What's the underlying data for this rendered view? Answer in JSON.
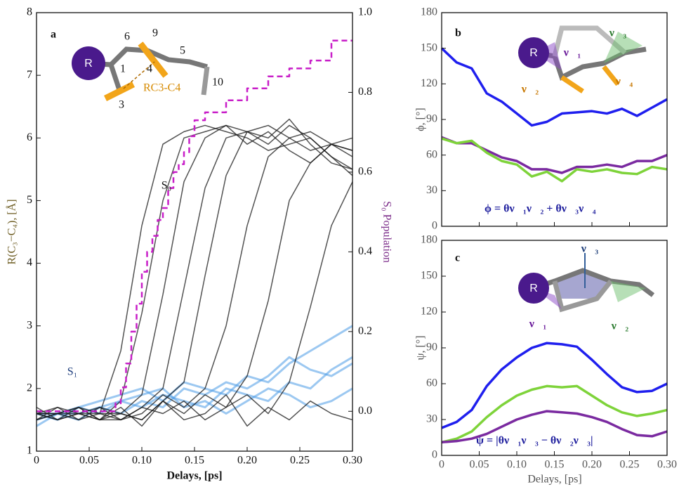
{
  "chart_data": [
    {
      "type": "line",
      "x_label": "Delays, [ps]",
      "y_label": "R(C₃−C₄), [Å]",
      "y2_label": "S₀ Population",
      "annotations": [
        "a",
        "S₀",
        "S₁",
        "R",
        "6",
        "9",
        "5",
        "1",
        "4",
        "10",
        "3",
        "RC3-C4"
      ],
      "xlim": [
        0,
        0.3
      ],
      "xticks": [
        0,
        0.05,
        {
          "value": 0.1,
          "label": "0.10"
        },
        0.15,
        {
          "value": 0.2,
          "label": "0.20"
        },
        0.25,
        {
          "value": 0.3,
          "label": "0.30"
        }
      ],
      "ylim": [
        1,
        8
      ],
      "yticks": [
        1,
        2,
        3,
        4,
        5,
        6,
        7,
        8
      ],
      "y2lim": [
        -0.1,
        1.0
      ],
      "y2ticks": [
        {
          "value": 0,
          "label": "0.0"
        },
        0.2,
        0.4,
        0.6,
        0.8,
        {
          "value": 1,
          "label": "1.0"
        }
      ],
      "x": [
        0,
        0.02,
        0.04,
        0.06,
        0.08,
        0.1,
        0.12,
        0.14,
        0.16,
        0.18,
        0.2,
        0.22,
        0.24,
        0.26,
        0.28,
        0.3
      ],
      "series": [
        {
          "color": "#4a9be6",
          "values": [
            1.6,
            1.6,
            1.7,
            1.8,
            1.9,
            2.0,
            1.8,
            2.1,
            2.0,
            1.9,
            2.2,
            2.1,
            2.4,
            2.6,
            2.8,
            3.0
          ]
        },
        {
          "color": "#4a9be6",
          "values": [
            1.5,
            1.6,
            1.6,
            1.7,
            1.8,
            1.7,
            1.9,
            1.8,
            1.7,
            2.0,
            1.9,
            1.8,
            2.1,
            2.0,
            2.3,
            2.5
          ]
        },
        {
          "color": "#4a9be6",
          "values": [
            1.6,
            1.5,
            1.7,
            1.6,
            1.8,
            1.9,
            2.0,
            1.7,
            1.8,
            1.6,
            1.8,
            2.0,
            1.9,
            1.7,
            1.8,
            2.0
          ]
        },
        {
          "color": "#4a9be6",
          "values": [
            1.4,
            1.6,
            1.5,
            1.7,
            1.6,
            1.8,
            1.7,
            2.0,
            1.9,
            2.1,
            2.0,
            2.2,
            2.5,
            2.3,
            2.2,
            2.4
          ]
        },
        {
          "color": "#1a1a1a",
          "values": [
            1.6,
            1.5,
            1.7,
            1.6,
            2.6,
            4.6,
            5.9,
            6.1,
            6.2,
            6.1,
            6.0,
            5.8,
            5.9,
            6.0,
            5.7,
            5.5
          ]
        },
        {
          "color": "#1a1a1a",
          "values": [
            1.5,
            1.7,
            1.6,
            1.5,
            1.8,
            3.2,
            5.0,
            6.0,
            6.1,
            6.2,
            5.9,
            6.1,
            5.8,
            5.6,
            5.9,
            5.8
          ]
        },
        {
          "color": "#1a1a1a",
          "values": [
            1.6,
            1.6,
            1.5,
            1.7,
            1.6,
            1.9,
            3.5,
            5.3,
            6.0,
            6.2,
            6.1,
            5.9,
            6.2,
            6.0,
            5.7,
            5.4
          ]
        },
        {
          "color": "#1a1a1a",
          "values": [
            1.7,
            1.5,
            1.6,
            1.6,
            1.5,
            1.7,
            2.0,
            3.6,
            5.2,
            6.0,
            6.1,
            6.2,
            6.0,
            5.8,
            5.9,
            6.0
          ]
        },
        {
          "color": "#1a1a1a",
          "values": [
            1.5,
            1.6,
            1.7,
            1.5,
            1.6,
            1.5,
            1.8,
            2.1,
            3.8,
            5.4,
            6.1,
            6.0,
            6.3,
            5.9,
            5.6,
            5.5
          ]
        },
        {
          "color": "#1a1a1a",
          "values": [
            1.6,
            1.5,
            1.6,
            1.7,
            1.5,
            1.6,
            1.9,
            1.7,
            2.0,
            3.0,
            4.6,
            5.7,
            6.0,
            6.1,
            5.9,
            5.7
          ]
        },
        {
          "color": "#1a1a1a",
          "values": [
            1.6,
            1.7,
            1.5,
            1.6,
            1.6,
            1.5,
            1.8,
            1.6,
            1.9,
            1.7,
            2.2,
            3.4,
            5.0,
            5.6,
            5.9,
            5.8
          ]
        },
        {
          "color": "#1a1a1a",
          "values": [
            1.5,
            1.6,
            1.6,
            1.5,
            1.7,
            1.4,
            1.8,
            1.5,
            1.6,
            1.9,
            1.4,
            1.7,
            1.5,
            1.8,
            1.6,
            1.5
          ]
        },
        {
          "color": "#1a1a1a",
          "values": [
            1.6,
            1.6,
            1.7,
            1.5,
            1.5,
            1.7,
            1.6,
            1.8,
            1.5,
            1.7,
            1.9,
            1.6,
            2.1,
            3.3,
            4.6,
            5.3
          ]
        },
        {
          "color": "#c81ec8",
          "axis": "y2",
          "step": true,
          "dashed": true,
          "x": [
            0,
            0.07,
            0.075,
            0.08,
            0.085,
            0.09,
            0.095,
            0.1,
            0.105,
            0.11,
            0.115,
            0.12,
            0.125,
            0.13,
            0.135,
            0.14,
            0.145,
            0.15,
            0.16,
            0.18,
            0.2,
            0.22,
            0.24,
            0.26,
            0.28,
            0.3
          ],
          "values": [
            0,
            0,
            0.02,
            0.06,
            0.12,
            0.2,
            0.27,
            0.35,
            0.4,
            0.44,
            0.48,
            0.51,
            0.56,
            0.6,
            0.62,
            0.65,
            0.69,
            0.73,
            0.75,
            0.78,
            0.81,
            0.84,
            0.86,
            0.88,
            0.93,
            0.93
          ]
        }
      ]
    },
    {
      "type": "line",
      "y_label": "ϕ, [°]",
      "annotations": [
        "b",
        "R",
        "ν⃗₁",
        "ν⃗₂",
        "ν⃗₃",
        "ν⃗₄",
        "ϕ = θν⃗₁ν⃗₂ + θν⃗₃ν⃗₄"
      ],
      "xlim": [
        0,
        0.3
      ],
      "xticks": [
        0,
        0.05,
        {
          "value": 0.1,
          "label": "0.10"
        },
        0.15,
        {
          "value": 0.2,
          "label": "0.20"
        },
        0.25,
        {
          "value": 0.3,
          "label": "0.30"
        }
      ],
      "xtick_labels": false,
      "ylim": [
        0,
        180
      ],
      "yticks": [
        0,
        30,
        60,
        90,
        120,
        150,
        180
      ],
      "x": [
        0,
        0.02,
        0.04,
        0.06,
        0.08,
        0.1,
        0.12,
        0.14,
        0.16,
        0.18,
        0.2,
        0.22,
        0.24,
        0.26,
        0.28,
        0.3
      ],
      "series": [
        {
          "color": "#1f1fee",
          "values": [
            150,
            138,
            133,
            112,
            105,
            95,
            85,
            88,
            95,
            96,
            97,
            95,
            99,
            93,
            100,
            107
          ]
        },
        {
          "color": "#7a2aa0",
          "values": [
            75,
            70,
            70,
            64,
            58,
            55,
            48,
            48,
            45,
            50,
            50,
            52,
            50,
            55,
            55,
            60
          ]
        },
        {
          "color": "#7ed33a",
          "values": [
            74,
            70,
            72,
            62,
            55,
            52,
            42,
            46,
            38,
            48,
            46,
            48,
            45,
            44,
            50,
            48
          ]
        }
      ]
    },
    {
      "type": "line",
      "x_label": "Delays, [ps]",
      "y_label": "ψ, [°]",
      "annotations": [
        "c",
        "R",
        "ν⃗₁",
        "ν⃗₂",
        "ν⃗₃",
        "ψ = |θν⃗₁ν⃗₃ − θν⃗₂ν⃗₃|"
      ],
      "xlim": [
        0,
        0.3
      ],
      "xticks": [
        0,
        0.05,
        {
          "value": 0.1,
          "label": "0.10"
        },
        0.15,
        {
          "value": 0.2,
          "label": "0.20"
        },
        0.25,
        {
          "value": 0.3,
          "label": "0.30"
        }
      ],
      "ylim": [
        0,
        180
      ],
      "yticks": [
        0,
        30,
        60,
        90,
        120,
        150,
        180
      ],
      "x": [
        0,
        0.02,
        0.04,
        0.06,
        0.08,
        0.1,
        0.12,
        0.14,
        0.16,
        0.18,
        0.2,
        0.22,
        0.24,
        0.26,
        0.28,
        0.3
      ],
      "series": [
        {
          "color": "#1f1fee",
          "values": [
            23,
            28,
            38,
            58,
            72,
            82,
            90,
            94,
            93,
            91,
            80,
            68,
            57,
            53,
            54,
            60
          ]
        },
        {
          "color": "#7ed33a",
          "values": [
            11,
            14,
            20,
            32,
            42,
            50,
            55,
            58,
            57,
            58,
            50,
            42,
            36,
            33,
            35,
            38
          ]
        },
        {
          "color": "#7a2aa0",
          "values": [
            11,
            12,
            14,
            18,
            24,
            30,
            34,
            37,
            36,
            35,
            32,
            28,
            22,
            17,
            16,
            20
          ]
        }
      ]
    }
  ]
}
